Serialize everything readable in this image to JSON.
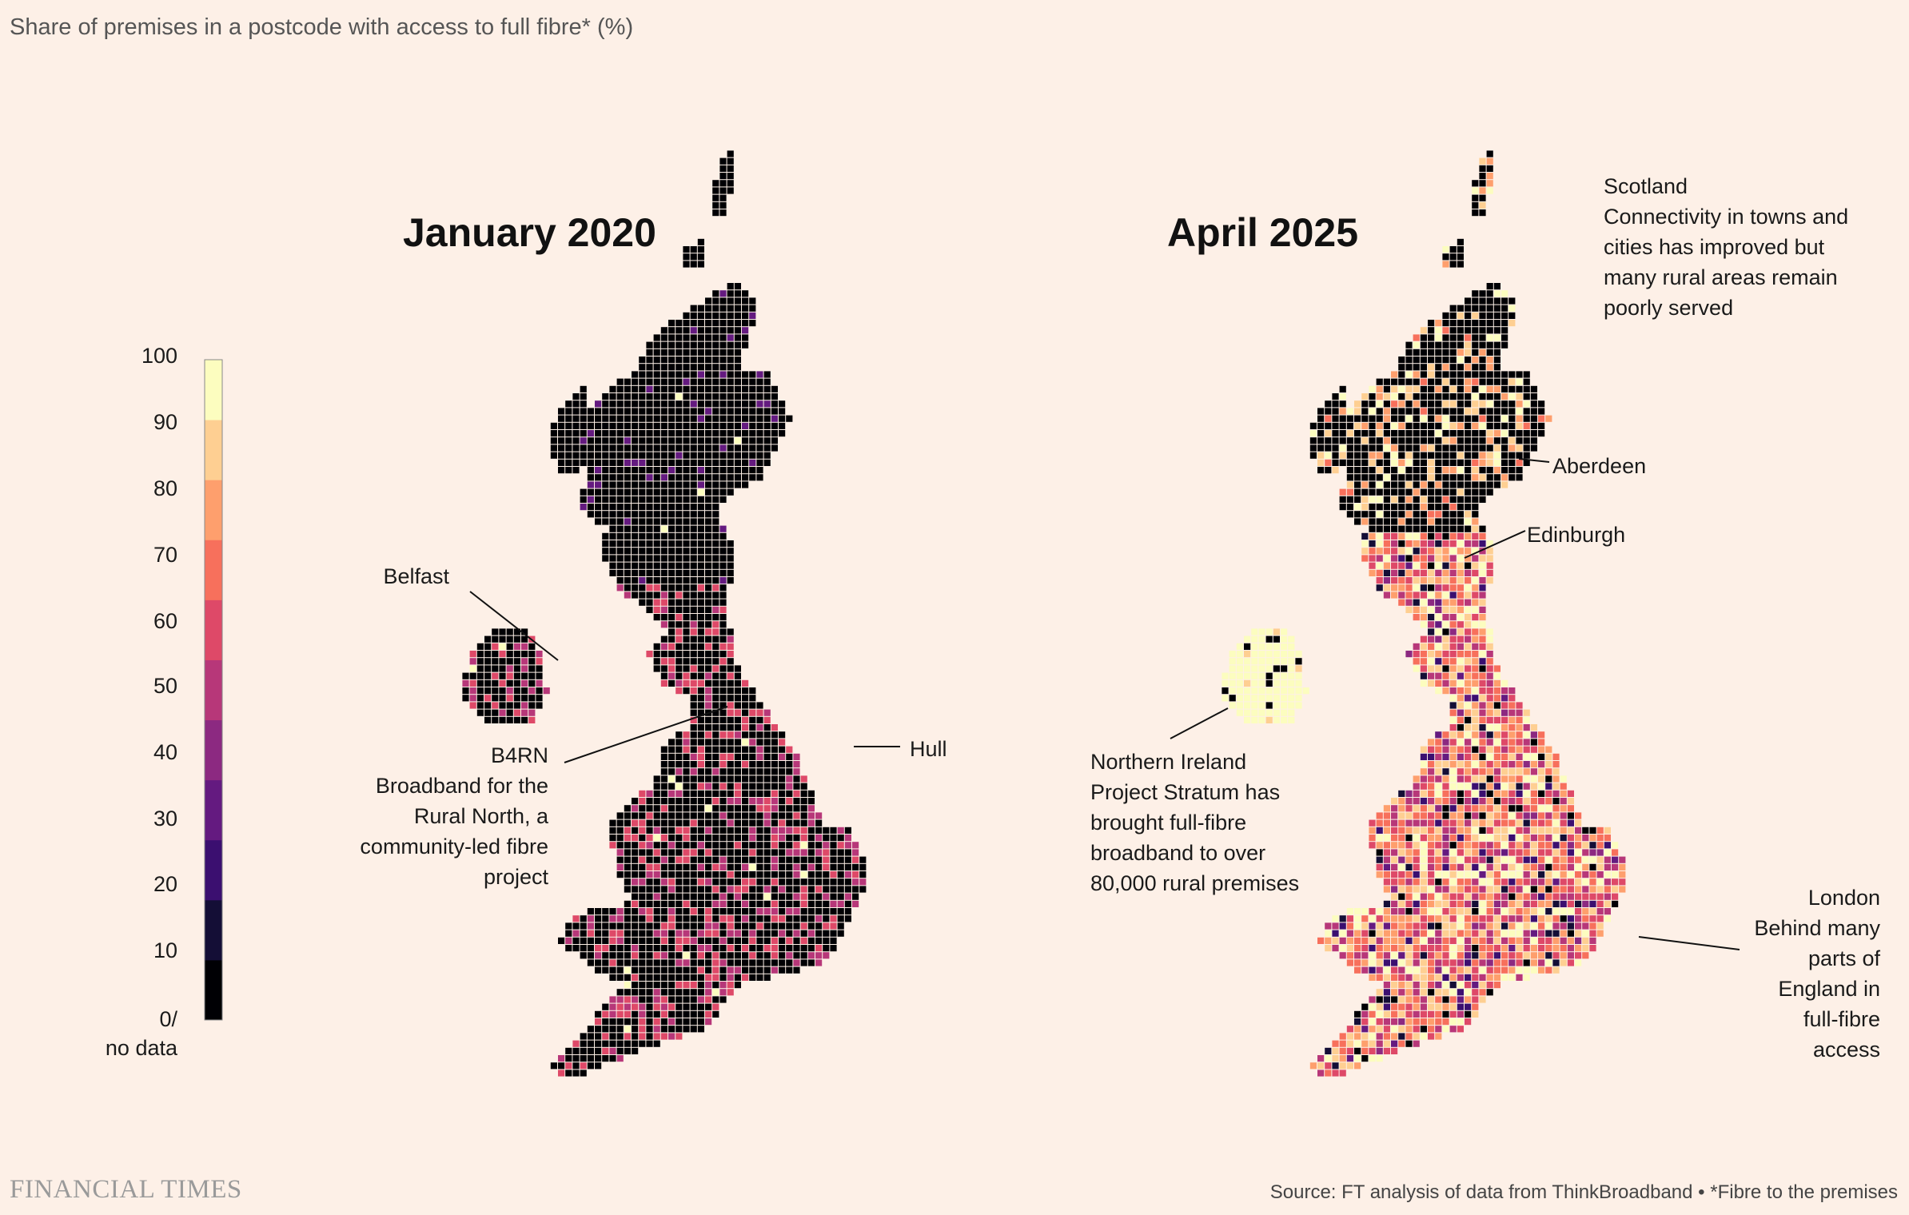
{
  "subtitle": "Share of premises in a postcode with access to full fibre* (%)",
  "maps": [
    {
      "title": "January 2020"
    },
    {
      "title": "April 2025"
    }
  ],
  "legend": {
    "ticks": [
      "100",
      "90",
      "80",
      "70",
      "60",
      "50",
      "40",
      "30",
      "20",
      "10",
      "0/\nno data"
    ],
    "colors": [
      "#000004",
      "#140e36",
      "#3b0f70",
      "#641a80",
      "#8c2981",
      "#b73779",
      "#de4968",
      "#f7705c",
      "#fe9f6d",
      "#fecf92",
      "#fcfdbf"
    ]
  },
  "annotations": {
    "belfast": "Belfast",
    "b4rn": "B4RN\nBroadband for the\nRural North, a\ncommunity-led fibre\nproject",
    "hull": "Hull",
    "scotland": "Scotland\nConnectivity in towns and\ncities has improved but\nmany rural areas remain\npoorly served",
    "aberdeen": "Aberdeen",
    "edinburgh": "Edinburgh",
    "northern_ireland": "Northern Ireland\nProject Stratum has\nbrought full-fibre\nbroadband to over\n80,000 rural premises",
    "london": "London\nBehind many\nparts of\nEngland in\nfull-fibre\naccess"
  },
  "footer": {
    "logo": "FINANCIAL TIMES",
    "source": "Source: FT analysis of data from ThinkBroadband • *Fibre to the premises"
  }
}
